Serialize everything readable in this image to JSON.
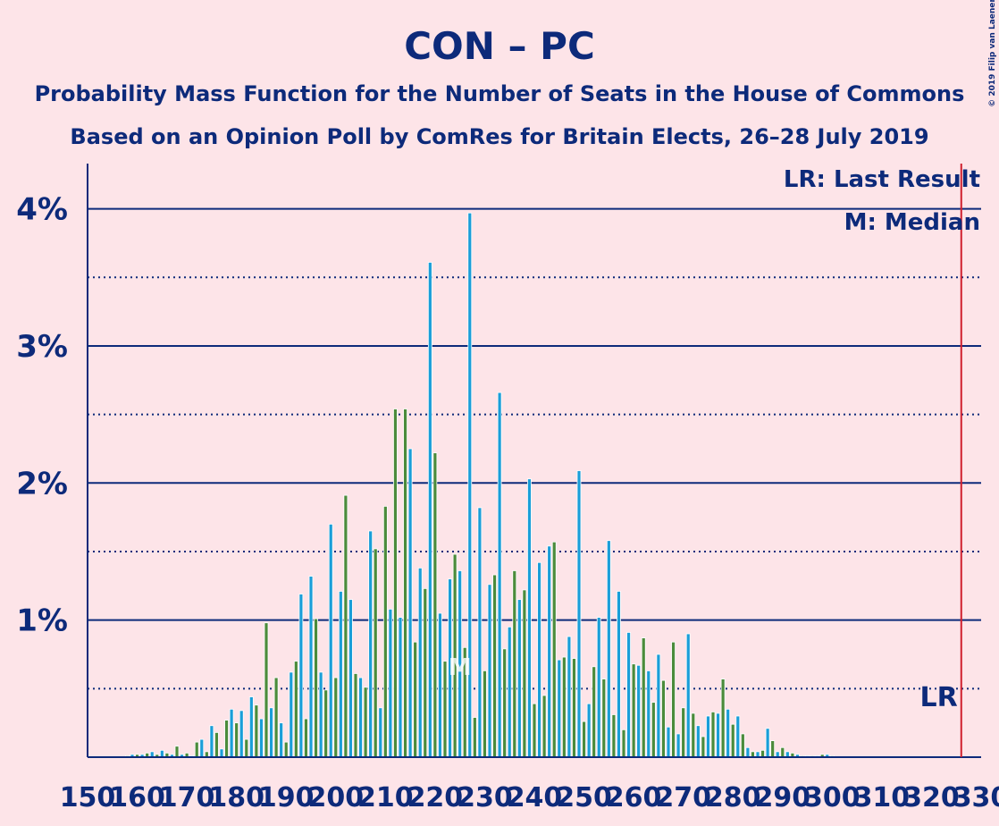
{
  "chart_data": {
    "type": "bar",
    "title": "CON – PC",
    "subtitle": "Probability Mass Function for the Number of Seats in the House of Commons",
    "subtitle2": "Based on an Opinion Poll by ComRes for Britain Elects, 26–28 July 2019",
    "copyright": "© 2019 Filip van Laenen",
    "legend_lines": [
      "LR: Last Result",
      "M: Median"
    ],
    "last_result": 326,
    "last_result_label": "LR",
    "median": 225,
    "median_label": "M",
    "colors": [
      "#4b8b3b",
      "#1a9ed8"
    ],
    "x": [
      158,
      159,
      160,
      161,
      162,
      163,
      164,
      165,
      166,
      167,
      168,
      169,
      170,
      171,
      172,
      173,
      174,
      175,
      176,
      177,
      178,
      179,
      180,
      181,
      182,
      183,
      184,
      185,
      186,
      187,
      188,
      189,
      190,
      191,
      192,
      193,
      194,
      195,
      196,
      197,
      198,
      199,
      200,
      201,
      202,
      203,
      204,
      205,
      206,
      207,
      208,
      209,
      210,
      211,
      212,
      213,
      214,
      215,
      216,
      217,
      218,
      219,
      220,
      221,
      222,
      223,
      224,
      225,
      226,
      227,
      228,
      229,
      230,
      231,
      232,
      233,
      234,
      235,
      236,
      237,
      238,
      239,
      240,
      241,
      242,
      243,
      244,
      245,
      246,
      247,
      248,
      249,
      250,
      251,
      252,
      253,
      254,
      255,
      256,
      257,
      258,
      259,
      260,
      261,
      262,
      263,
      264,
      265,
      266,
      267,
      268,
      269,
      270,
      271,
      272,
      273,
      274,
      275,
      276,
      277,
      278,
      279,
      280,
      281,
      282,
      283,
      284,
      285,
      286,
      287,
      288,
      289,
      290,
      291,
      292,
      293,
      294,
      295,
      296,
      297,
      298,
      299,
      300
    ],
    "values": [
      0.01,
      0.02,
      0.02,
      0.02,
      0.03,
      0.04,
      0.02,
      0.05,
      0.03,
      0.02,
      0.08,
      0.02,
      0.03,
      0.01,
      0.11,
      0.13,
      0.04,
      0.23,
      0.18,
      0.06,
      0.27,
      0.35,
      0.25,
      0.34,
      0.13,
      0.44,
      0.38,
      0.28,
      0.98,
      0.36,
      0.58,
      0.25,
      0.11,
      0.62,
      0.7,
      1.19,
      0.28,
      1.32,
      1.01,
      0.62,
      0.49,
      1.7,
      0.58,
      1.21,
      1.91,
      1.15,
      0.61,
      0.58,
      0.51,
      1.65,
      1.52,
      0.36,
      1.83,
      1.08,
      2.54,
      1.02,
      2.54,
      2.25,
      0.84,
      1.38,
      1.23,
      3.61,
      2.22,
      1.05,
      0.7,
      1.3,
      1.48,
      1.36,
      0.8,
      3.97,
      0.29,
      1.82,
      0.63,
      1.26,
      1.33,
      2.66,
      0.79,
      0.95,
      1.36,
      1.15,
      1.22,
      2.03,
      0.39,
      1.42,
      0.45,
      1.54,
      1.57,
      0.71,
      0.73,
      0.88,
      0.72,
      2.09,
      0.26,
      0.39,
      0.66,
      1.02,
      0.57,
      1.58,
      0.31,
      1.21,
      0.2,
      0.91,
      0.68,
      0.67,
      0.87,
      0.63,
      0.4,
      0.75,
      0.56,
      0.22,
      0.84,
      0.17,
      0.36,
      0.9,
      0.32,
      0.23,
      0.15,
      0.3,
      0.33,
      0.32,
      0.57,
      0.35,
      0.24,
      0.3,
      0.17,
      0.07,
      0.04,
      0.04,
      0.05,
      0.21,
      0.12,
      0.04,
      0.07,
      0.04,
      0.03,
      0.02,
      0.01,
      0.01,
      0.01,
      0.01,
      0.02,
      0.02,
      0.01
    ],
    "xlim": [
      150,
      330
    ],
    "xticks": [
      150,
      160,
      170,
      180,
      190,
      200,
      210,
      220,
      230,
      240,
      250,
      260,
      270,
      280,
      290,
      300,
      310,
      320,
      330
    ],
    "ylim": [
      0,
      4.33
    ],
    "yticks": [
      {
        "value": 1,
        "label": "1%"
      },
      {
        "value": 2,
        "label": "2%"
      },
      {
        "value": 3,
        "label": "3%"
      },
      {
        "value": 4,
        "label": "4%"
      }
    ],
    "minor_yticks": [
      0.5,
      1.5,
      2.5,
      3.5
    ],
    "grid": true
  }
}
